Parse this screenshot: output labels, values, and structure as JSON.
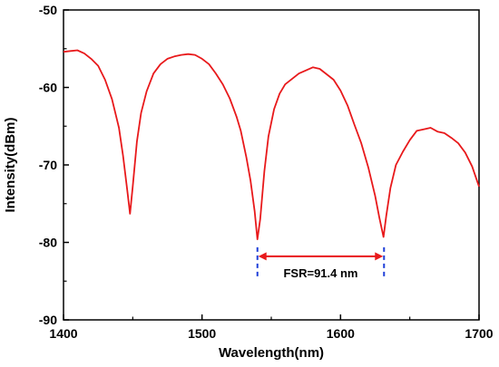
{
  "chart_data": {
    "type": "line",
    "title": "",
    "xlabel": "Wavelength(nm)",
    "ylabel": "Intensity(dBm)",
    "xlim": [
      1400,
      1700
    ],
    "ylim": [
      -90,
      -50
    ],
    "xticks": [
      "1400",
      "1500",
      "1600",
      "1700"
    ],
    "yticks": [
      "-50",
      "-60",
      "-70",
      "-80",
      "-90"
    ],
    "grid": false,
    "series": [
      {
        "color": "#e8191b",
        "x": [
          1400,
          1405,
          1410,
          1415,
          1420,
          1425,
          1430,
          1435,
          1440,
          1443,
          1446,
          1448,
          1450,
          1453,
          1456,
          1460,
          1465,
          1470,
          1475,
          1480,
          1485,
          1490,
          1495,
          1500,
          1505,
          1510,
          1515,
          1520,
          1525,
          1528,
          1532,
          1535,
          1538,
          1540,
          1542,
          1545,
          1548,
          1552,
          1556,
          1560,
          1565,
          1570,
          1575,
          1580,
          1585,
          1590,
          1595,
          1600,
          1605,
          1610,
          1615,
          1620,
          1625,
          1628,
          1631,
          1633,
          1636,
          1640,
          1645,
          1650,
          1655,
          1660,
          1665,
          1670,
          1675,
          1680,
          1685,
          1690,
          1695,
          1700
        ],
        "y": [
          -55.4,
          -55.3,
          -55.2,
          -55.6,
          -56.3,
          -57.2,
          -59.0,
          -61.5,
          -65.2,
          -68.8,
          -73.2,
          -76.3,
          -72.8,
          -67.0,
          -63.3,
          -60.5,
          -58.2,
          -57.0,
          -56.3,
          -56.0,
          -55.8,
          -55.7,
          -55.8,
          -56.3,
          -57.0,
          -58.2,
          -59.6,
          -61.4,
          -63.8,
          -65.6,
          -69.0,
          -72.0,
          -76.0,
          -79.6,
          -77.0,
          -70.8,
          -66.3,
          -62.8,
          -60.8,
          -59.6,
          -58.9,
          -58.2,
          -57.8,
          -57.4,
          -57.6,
          -58.3,
          -59.0,
          -60.4,
          -62.3,
          -64.8,
          -67.2,
          -70.3,
          -74.0,
          -76.8,
          -79.3,
          -76.6,
          -73.0,
          -70.0,
          -68.3,
          -66.8,
          -65.6,
          -65.4,
          -65.2,
          -65.7,
          -65.9,
          -66.5,
          -67.2,
          -68.4,
          -70.2,
          -72.8
        ]
      }
    ],
    "annotations": [
      {
        "text": "FSR=91.4 nm",
        "type": "span-arrow",
        "x_start": 1540,
        "x_end": 1631.4,
        "y": -81.8,
        "arrow_color": "#e8191b",
        "marker_color": "#1f3fd9"
      }
    ]
  }
}
